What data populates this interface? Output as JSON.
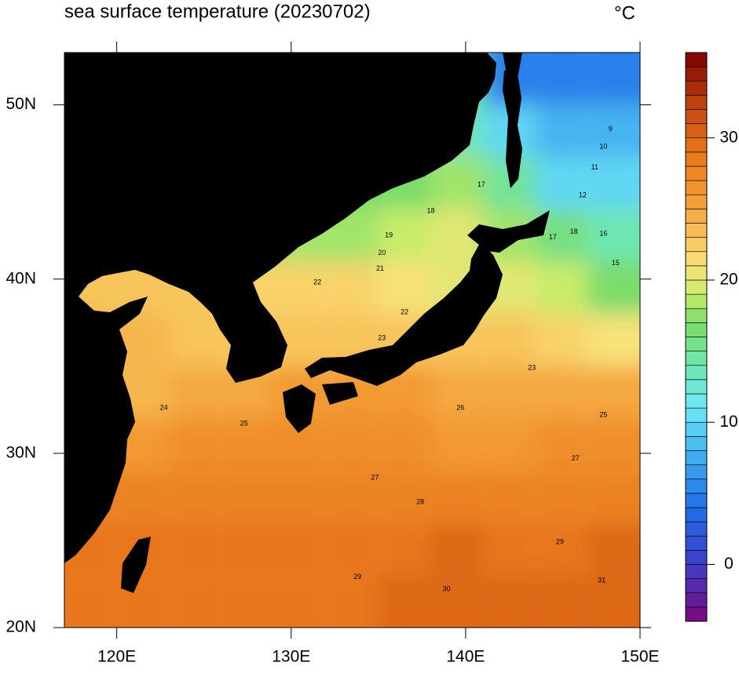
{
  "chart_data": {
    "type": "map",
    "title": "sea surface temperature (20230702)",
    "units": "°C",
    "xlim": [
      117,
      150
    ],
    "ylim": [
      20,
      53
    ],
    "xticks": [
      {
        "value": 120,
        "label": "120E"
      },
      {
        "value": 130,
        "label": "130E"
      },
      {
        "value": 140,
        "label": "140E"
      },
      {
        "value": 150,
        "label": "150E"
      }
    ],
    "yticks": [
      {
        "value": 20,
        "label": "20N"
      },
      {
        "value": 30,
        "label": "30N"
      },
      {
        "value": 40,
        "label": "40N"
      },
      {
        "value": 50,
        "label": "50N"
      }
    ],
    "clim": [
      -4,
      36
    ],
    "cticks": [
      0,
      10,
      20,
      30
    ],
    "colormap": [
      [
        -4,
        "#7b0a7b"
      ],
      [
        0,
        "#3d3dc8"
      ],
      [
        4,
        "#1f6fe8"
      ],
      [
        8,
        "#45b4f0"
      ],
      [
        11,
        "#6de8f5"
      ],
      [
        14,
        "#6ee6b0"
      ],
      [
        17,
        "#7adc6a"
      ],
      [
        19,
        "#c9ec6a"
      ],
      [
        21,
        "#f8e27a"
      ],
      [
        23,
        "#f8c45c"
      ],
      [
        26,
        "#f29a30"
      ],
      [
        29,
        "#e8761a"
      ],
      [
        32,
        "#c84a10"
      ],
      [
        36,
        "#7a0000"
      ]
    ],
    "land_color": "#000000",
    "grid_lon": [
      118.5,
      121.5,
      124.5,
      127.5,
      130.5,
      133.5,
      136.5,
      139.5,
      142.5,
      145.5,
      148.5
    ],
    "grid_lat": [
      51.5,
      48.5,
      45.5,
      42.5,
      39.5,
      36.5,
      33.5,
      30.5,
      27.5,
      24.5,
      21.5
    ],
    "sst": [
      [
        null,
        null,
        null,
        null,
        null,
        null,
        null,
        14,
        null,
        5,
        5
      ],
      [
        null,
        null,
        null,
        null,
        null,
        null,
        null,
        14,
        10,
        8,
        8
      ],
      [
        null,
        null,
        null,
        null,
        null,
        null,
        17,
        18,
        15,
        10,
        10
      ],
      [
        null,
        null,
        null,
        null,
        null,
        18,
        19,
        20,
        18,
        16,
        14
      ],
      [
        23,
        null,
        null,
        null,
        22,
        22,
        21,
        null,
        20,
        19,
        17
      ],
      [
        24,
        24,
        23,
        null,
        23,
        23,
        null,
        null,
        23,
        22,
        21
      ],
      [
        null,
        24,
        25,
        25,
        26,
        26,
        26,
        25,
        25,
        25,
        25
      ],
      [
        null,
        26,
        27,
        27,
        27,
        27,
        27,
        26,
        26,
        27,
        27
      ],
      [
        null,
        28,
        28,
        28,
        28,
        28,
        28,
        28,
        28,
        28,
        28
      ],
      [
        null,
        29,
        29,
        29,
        29,
        29,
        29,
        30,
        29,
        29,
        30
      ],
      [
        null,
        29,
        29,
        29,
        29,
        29,
        30,
        30,
        30,
        30,
        30
      ]
    ],
    "contour_labels": [
      {
        "value": 17,
        "lon": 140.9,
        "lat": 45.4
      },
      {
        "value": 18,
        "lon": 138.0,
        "lat": 43.9
      },
      {
        "value": 19,
        "lon": 135.6,
        "lat": 42.5
      },
      {
        "value": 20,
        "lon": 135.2,
        "lat": 41.5
      },
      {
        "value": 21,
        "lon": 135.1,
        "lat": 40.6
      },
      {
        "value": 22,
        "lon": 131.5,
        "lat": 39.8
      },
      {
        "value": 22,
        "lon": 136.5,
        "lat": 38.1
      },
      {
        "value": 23,
        "lon": 135.2,
        "lat": 36.6
      },
      {
        "value": 24,
        "lon": 122.7,
        "lat": 32.6
      },
      {
        "value": 25,
        "lon": 127.3,
        "lat": 31.7
      },
      {
        "value": 26,
        "lon": 139.7,
        "lat": 32.6
      },
      {
        "value": 27,
        "lon": 134.8,
        "lat": 28.6
      },
      {
        "value": 28,
        "lon": 137.4,
        "lat": 27.2
      },
      {
        "value": 29,
        "lon": 133.8,
        "lat": 22.9
      },
      {
        "value": 30,
        "lon": 138.9,
        "lat": 22.2
      },
      {
        "value": 31,
        "lon": 147.8,
        "lat": 22.7
      },
      {
        "value": 23,
        "lon": 143.8,
        "lat": 34.9
      },
      {
        "value": 16,
        "lon": 147.9,
        "lat": 42.6
      },
      {
        "value": 15,
        "lon": 148.6,
        "lat": 40.9
      },
      {
        "value": 10,
        "lon": 147.9,
        "lat": 47.6
      },
      {
        "value": 9,
        "lon": 148.3,
        "lat": 48.6
      },
      {
        "value": 11,
        "lon": 147.4,
        "lat": 46.4
      },
      {
        "value": 12,
        "lon": 146.7,
        "lat": 44.8
      },
      {
        "value": 18,
        "lon": 146.2,
        "lat": 42.7
      },
      {
        "value": 17,
        "lon": 145.0,
        "lat": 42.4
      },
      {
        "value": 25,
        "lon": 147.9,
        "lat": 32.2
      },
      {
        "value": 27,
        "lon": 146.3,
        "lat": 29.7
      },
      {
        "value": 29,
        "lon": 145.4,
        "lat": 24.9
      }
    ]
  }
}
